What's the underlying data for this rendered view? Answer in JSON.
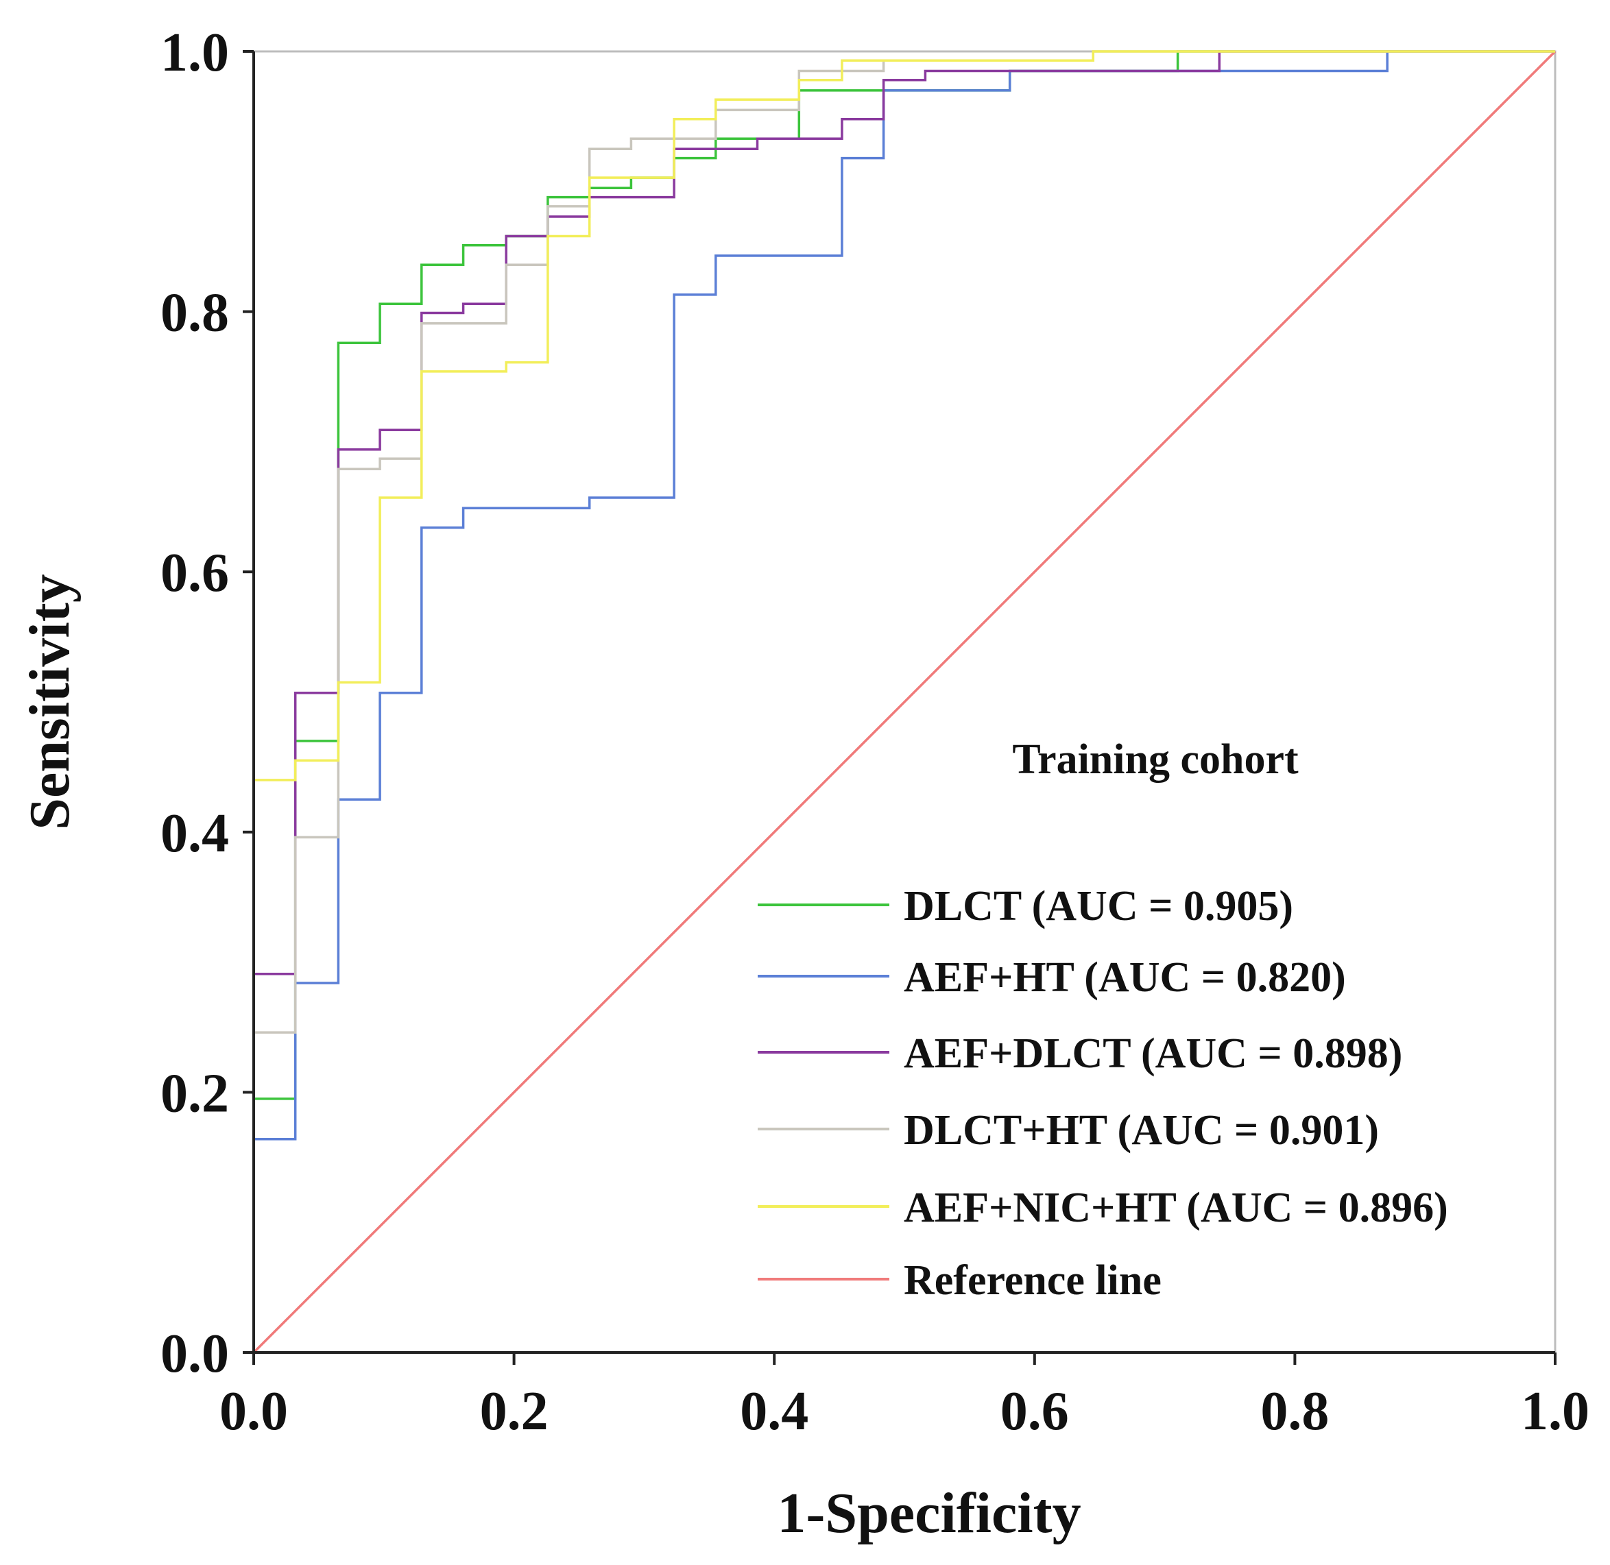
{
  "chart_data": {
    "type": "line",
    "title": "",
    "xlabel": "1-Specificity",
    "ylabel": "Sensitivity",
    "xlim": [
      0,
      1
    ],
    "ylim": [
      0,
      1
    ],
    "xticks": [
      "0.0",
      "0.2",
      "0.4",
      "0.6",
      "0.8",
      "1.0"
    ],
    "yticks": [
      "0.0",
      "0.2",
      "0.4",
      "0.6",
      "0.8",
      "1.0"
    ],
    "grid": false,
    "legend": {
      "title": "Training cohort",
      "placement": "bottom-right"
    },
    "series": [
      {
        "name": "DLCT (AUC = 0.905)",
        "color": "#3cc43c",
        "x": [
          0,
          0,
          0.032,
          0.032,
          0.065,
          0.065,
          0.097,
          0.097,
          0.129,
          0.129,
          0.161,
          0.161,
          0.194,
          0.194,
          0.226,
          0.226,
          0.258,
          0.258,
          0.29,
          0.29,
          0.323,
          0.323,
          0.355,
          0.355,
          0.419,
          0.419,
          0.484,
          0.484,
          0.581,
          0.581,
          0.71,
          0.71,
          1
        ],
        "y": [
          0,
          0.195,
          0.195,
          0.47,
          0.47,
          0.776,
          0.776,
          0.806,
          0.806,
          0.836,
          0.836,
          0.851,
          0.851,
          0.858,
          0.858,
          0.888,
          0.888,
          0.895,
          0.895,
          0.903,
          0.903,
          0.918,
          0.918,
          0.933,
          0.933,
          0.97,
          0.97,
          0.97,
          0.97,
          0.985,
          0.985,
          1,
          1
        ]
      },
      {
        "name": "AEF+HT (AUC = 0.820)",
        "color": "#5b7fd6",
        "x": [
          0,
          0,
          0.032,
          0.032,
          0.065,
          0.065,
          0.097,
          0.097,
          0.129,
          0.129,
          0.161,
          0.161,
          0.258,
          0.258,
          0.323,
          0.323,
          0.355,
          0.355,
          0.452,
          0.452,
          0.484,
          0.484,
          0.581,
          0.581,
          0.871,
          0.871,
          1
        ],
        "y": [
          0,
          0.164,
          0.164,
          0.284,
          0.284,
          0.425,
          0.425,
          0.507,
          0.507,
          0.634,
          0.634,
          0.649,
          0.649,
          0.657,
          0.657,
          0.813,
          0.813,
          0.843,
          0.843,
          0.918,
          0.918,
          0.97,
          0.97,
          0.985,
          0.985,
          1,
          1
        ]
      },
      {
        "name": "AEF+DLCT (AUC = 0.898)",
        "color": "#8a3a9e",
        "x": [
          0,
          0,
          0.032,
          0.032,
          0.065,
          0.065,
          0.097,
          0.097,
          0.129,
          0.129,
          0.161,
          0.161,
          0.194,
          0.194,
          0.226,
          0.226,
          0.258,
          0.258,
          0.323,
          0.323,
          0.387,
          0.387,
          0.452,
          0.452,
          0.484,
          0.484,
          0.516,
          0.516,
          0.742,
          0.742,
          1
        ],
        "y": [
          0,
          0.291,
          0.291,
          0.507,
          0.507,
          0.694,
          0.694,
          0.709,
          0.709,
          0.799,
          0.799,
          0.806,
          0.806,
          0.858,
          0.858,
          0.873,
          0.873,
          0.888,
          0.888,
          0.925,
          0.925,
          0.933,
          0.933,
          0.948,
          0.948,
          0.978,
          0.978,
          0.985,
          0.985,
          1,
          1
        ]
      },
      {
        "name": "DLCT+HT (AUC = 0.901)",
        "color": "#c9c6bd",
        "x": [
          0,
          0,
          0.032,
          0.032,
          0.065,
          0.065,
          0.097,
          0.097,
          0.129,
          0.129,
          0.194,
          0.194,
          0.226,
          0.226,
          0.258,
          0.258,
          0.29,
          0.29,
          0.355,
          0.355,
          0.419,
          0.419,
          0.484,
          0.484,
          0.645,
          0.645,
          1
        ],
        "y": [
          0,
          0.246,
          0.246,
          0.396,
          0.396,
          0.679,
          0.679,
          0.687,
          0.687,
          0.791,
          0.791,
          0.836,
          0.836,
          0.881,
          0.881,
          0.925,
          0.925,
          0.933,
          0.933,
          0.955,
          0.955,
          0.985,
          0.985,
          0.993,
          0.993,
          1,
          1
        ]
      },
      {
        "name": "AEF+NIC+HT (AUC = 0.896)",
        "color": "#f2ee5a",
        "x": [
          0,
          0,
          0.032,
          0.032,
          0.065,
          0.065,
          0.097,
          0.097,
          0.129,
          0.129,
          0.194,
          0.194,
          0.226,
          0.226,
          0.258,
          0.258,
          0.323,
          0.323,
          0.355,
          0.355,
          0.419,
          0.419,
          0.452,
          0.452,
          0.645,
          0.645,
          1
        ],
        "y": [
          0,
          0.44,
          0.44,
          0.455,
          0.455,
          0.515,
          0.515,
          0.657,
          0.657,
          0.754,
          0.754,
          0.761,
          0.761,
          0.858,
          0.858,
          0.903,
          0.903,
          0.948,
          0.948,
          0.963,
          0.963,
          0.978,
          0.978,
          0.993,
          0.993,
          1,
          1
        ]
      },
      {
        "name": "Reference line",
        "color": "#f07a7a",
        "x": [
          0,
          1
        ],
        "y": [
          0,
          1
        ]
      }
    ]
  }
}
